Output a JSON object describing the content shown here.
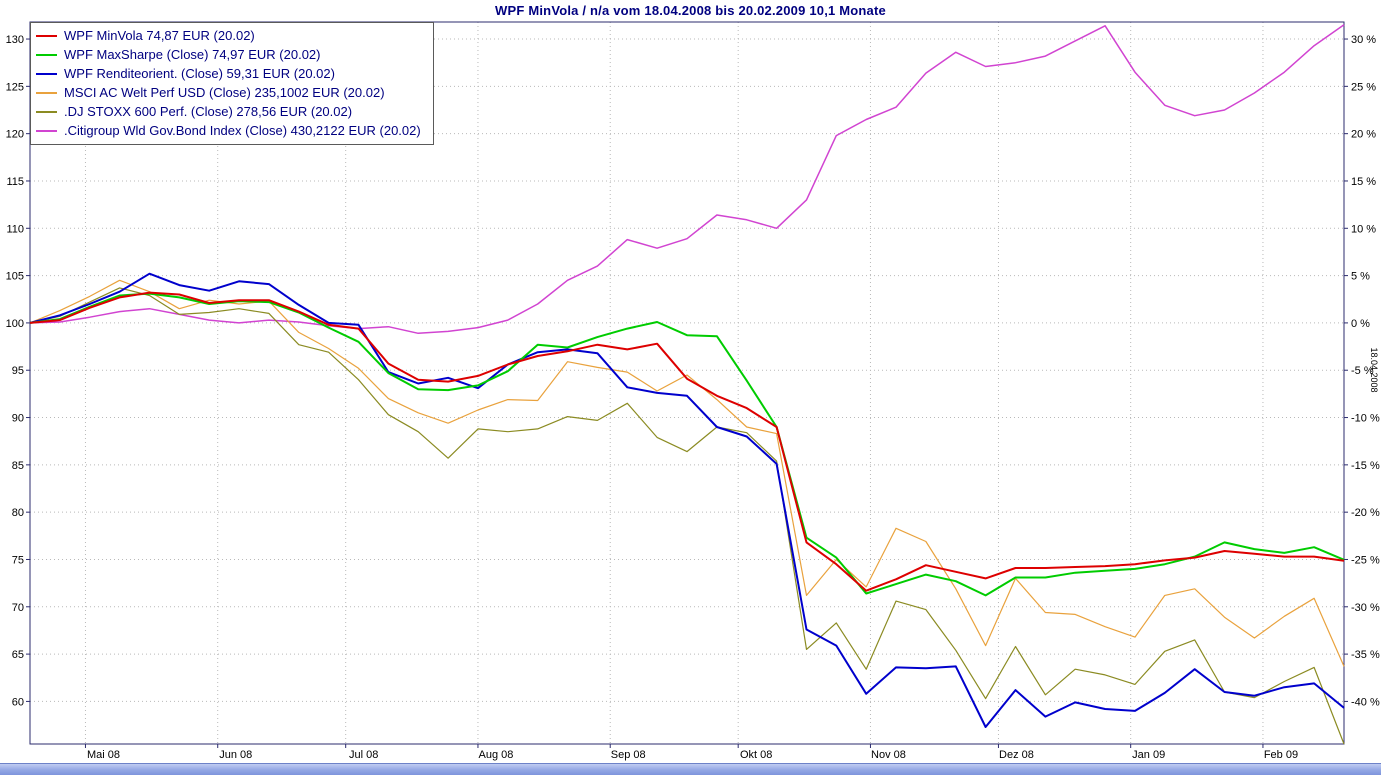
{
  "title": "WPF MinVola / n/a vom 18.04.2008 bis 20.02.2009 10,1 Monate",
  "legend": {
    "items": [
      {
        "label": "WPF MinVola 74,87 EUR (20.02)",
        "color": "#dd0000"
      },
      {
        "label": "WPF MaxSharpe (Close) 74,97 EUR (20.02)",
        "color": "#00cc00"
      },
      {
        "label": "WPF Renditeorient. (Close) 59,31 EUR (20.02)",
        "color": "#0000cc"
      },
      {
        "label": "MSCI AC Welt Perf USD (Close) 235,1002 EUR (20.02)",
        "color": "#e9a23d"
      },
      {
        "label": ".DJ STOXX 600 Perf. (Close) 278,56 EUR (20.02)",
        "color": "#8b8b22"
      },
      {
        "label": ".Citigroup Wld Gov.Bond Index (Close) 430,2122 EUR (20.02)",
        "color": "#d144d1"
      }
    ]
  },
  "axes": {
    "y_left_ticks": [
      130,
      125,
      120,
      115,
      110,
      105,
      100,
      95,
      90,
      85,
      80,
      75,
      70,
      65,
      60
    ],
    "y_right_ticks": [
      "30 %",
      "25 %",
      "20 %",
      "15 %",
      "10 %",
      "5 %",
      "0 %",
      "-5 %",
      "-10 %",
      "-15 %",
      "-20 %",
      "-25 %",
      "-30 %",
      "-35 %",
      "-40 %"
    ],
    "x_ticks": [
      "Mai 08",
      "Jun 08",
      "Jul 08",
      "Aug 08",
      "Sep 08",
      "Okt 08",
      "Nov 08",
      "Dez 08",
      "Jan 09",
      "Feb 09"
    ],
    "right_axis_label": "18.04.2008"
  },
  "chart_data": {
    "type": "line",
    "title": "WPF MinVola / n/a vom 18.04.2008 bis 20.02.2009 10,1 Monate",
    "x_unit": "weeks_from_18.04.2008",
    "x_range": [
      0,
      44
    ],
    "x_tick_positions_weeks": [
      1.857,
      6.286,
      10.571,
      15,
      19.429,
      23.714,
      28.143,
      32.429,
      36.857,
      41.286
    ],
    "y_axis_range": [
      60,
      130
    ],
    "y_plot_domain": [
      55.5,
      131.8
    ],
    "index_base": 100,
    "grid": true,
    "legend_position": "top-left",
    "series": [
      {
        "name": "WPF MinVola",
        "color": "#dd0000",
        "width": 2,
        "values": [
          100,
          100.3,
          101.6,
          102.7,
          103.2,
          103,
          102.1,
          102.4,
          102.4,
          101.2,
          99.8,
          99.4,
          95.7,
          94,
          93.8,
          94.4,
          95.6,
          96.5,
          97,
          97.7,
          97.2,
          97.8,
          94.1,
          92.3,
          91,
          89,
          76.8,
          74.5,
          71.7,
          72.9,
          74.4,
          73.7,
          73,
          74.1,
          74.1,
          74.2,
          74.3,
          74.5,
          74.9,
          75.2,
          75.9,
          75.6,
          75.3,
          75.3,
          74.87
        ]
      },
      {
        "name": "WPF MaxSharpe",
        "color": "#00cc00",
        "width": 2,
        "values": [
          100,
          100.4,
          101.7,
          102.9,
          103.1,
          102.7,
          102,
          102.3,
          102.2,
          101.1,
          99.5,
          98,
          94.7,
          93,
          92.9,
          93.4,
          94.9,
          97.7,
          97.4,
          98.5,
          99.4,
          100.1,
          98.7,
          98.6,
          93.9,
          89,
          77.3,
          75.2,
          71.4,
          72.4,
          73.4,
          72.7,
          71.2,
          73.1,
          73.1,
          73.6,
          73.8,
          74,
          74.5,
          75.3,
          76.8,
          76.1,
          75.7,
          76.3,
          74.97
        ]
      },
      {
        "name": "WPF Renditeorient.",
        "color": "#0000cc",
        "width": 2,
        "values": [
          100,
          100.8,
          102,
          103.3,
          105.2,
          104,
          103.4,
          104.4,
          104.1,
          101.9,
          100,
          99.8,
          94.8,
          93.6,
          94.2,
          93.1,
          95.6,
          96.9,
          97.2,
          96.8,
          93.2,
          92.6,
          92.3,
          89,
          88,
          85.1,
          67.6,
          65.9,
          60.8,
          63.6,
          63.5,
          63.7,
          57.3,
          61.2,
          58.4,
          59.9,
          59.2,
          59,
          60.9,
          63.4,
          61,
          60.6,
          61.5,
          61.9,
          59.31
        ]
      },
      {
        "name": "MSCI AC Welt Perf USD",
        "color": "#e9a23d",
        "width": 1.2,
        "values": [
          100,
          101.3,
          102.8,
          104.5,
          103.3,
          101.5,
          102.4,
          102,
          102.3,
          99,
          97.3,
          95.2,
          92,
          90.5,
          89.4,
          90.8,
          91.9,
          91.8,
          95.9,
          95.3,
          94.8,
          92.8,
          94.5,
          91.9,
          89,
          88.3,
          71.2,
          75,
          72.1,
          78.3,
          76.9,
          71.9,
          65.9,
          73,
          69.4,
          69.2,
          67.9,
          66.8,
          71.2,
          71.9,
          68.9,
          66.7,
          69,
          70.9,
          63.7
        ]
      },
      {
        "name": ".DJ STOXX 600 Perf.",
        "color": "#8b8b22",
        "width": 1.2,
        "values": [
          100,
          100.7,
          102.2,
          103.7,
          102.9,
          100.9,
          101.1,
          101.5,
          101,
          97.7,
          96.9,
          94,
          90.3,
          88.5,
          85.7,
          88.8,
          88.5,
          88.8,
          90.1,
          89.7,
          91.5,
          87.9,
          86.4,
          89,
          88.4,
          85.4,
          65.5,
          68.3,
          63.4,
          70.6,
          69.7,
          65.4,
          60.3,
          65.8,
          60.7,
          63.4,
          62.8,
          61.8,
          65.3,
          66.5,
          61,
          60.4,
          62.1,
          63.6,
          55.5
        ]
      },
      {
        "name": ".Citigroup Wld Gov.Bond Index",
        "color": "#d144d1",
        "width": 1.5,
        "values": [
          100,
          100.1,
          100.6,
          101.2,
          101.5,
          100.9,
          100.3,
          100,
          100.3,
          100.1,
          99.7,
          99.4,
          99.6,
          98.9,
          99.1,
          99.5,
          100.3,
          102,
          104.5,
          106,
          108.8,
          107.9,
          108.9,
          111.4,
          110.9,
          110,
          113,
          119.8,
          121.5,
          122.8,
          126.4,
          128.6,
          127.1,
          127.5,
          128.2,
          129.8,
          131.4,
          126.5,
          123,
          121.9,
          122.5,
          124.3,
          126.5,
          129.3,
          131.5
        ]
      }
    ]
  }
}
